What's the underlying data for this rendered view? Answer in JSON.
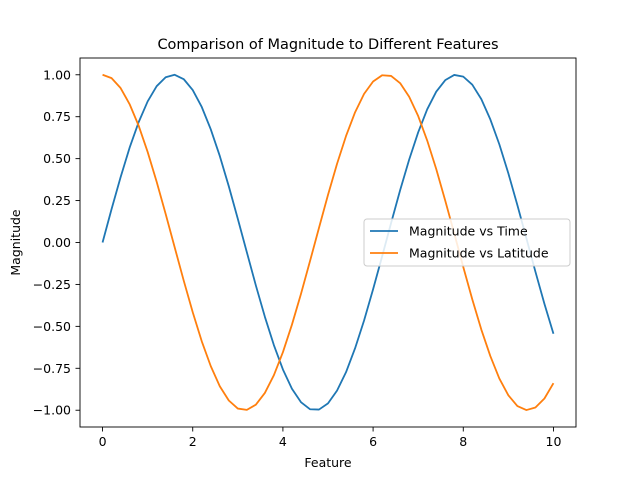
{
  "chart_data": {
    "type": "line",
    "title": "Comparison of Magnitude to Different Features",
    "xlabel": "Feature",
    "ylabel": "Magnitude",
    "xlim": [
      -0.5,
      10.5
    ],
    "ylim": [
      -1.1,
      1.1
    ],
    "xticks": [
      0,
      2,
      4,
      6,
      8,
      10
    ],
    "xtick_labels": [
      "0",
      "2",
      "4",
      "6",
      "8",
      "10"
    ],
    "yticks": [
      -1.0,
      -0.75,
      -0.5,
      -0.25,
      0.0,
      0.25,
      0.5,
      0.75,
      1.0
    ],
    "ytick_labels": [
      "−1.00",
      "−0.75",
      "−0.50",
      "−0.25",
      "0.00",
      "0.25",
      "0.50",
      "0.75",
      "1.00"
    ],
    "grid": false,
    "legend_position": "center-right",
    "x": [
      0.0,
      0.2,
      0.4,
      0.6,
      0.8,
      1.0,
      1.2,
      1.4,
      1.6,
      1.8,
      2.0,
      2.2,
      2.4,
      2.6,
      2.8,
      3.0,
      3.2,
      3.4,
      3.6,
      3.8,
      4.0,
      4.2,
      4.4,
      4.6,
      4.8,
      5.0,
      5.2,
      5.4,
      5.6,
      5.8,
      6.0,
      6.2,
      6.4,
      6.6,
      6.8,
      7.0,
      7.2,
      7.4,
      7.6,
      7.8,
      8.0,
      8.2,
      8.4,
      8.6,
      8.8,
      9.0,
      9.2,
      9.4,
      9.6,
      9.8,
      10.0
    ],
    "series": [
      {
        "name": "Magnitude vs Time",
        "color": "#1f77b4",
        "values": [
          0.0,
          0.199,
          0.389,
          0.565,
          0.717,
          0.841,
          0.932,
          0.985,
          1.0,
          0.974,
          0.909,
          0.808,
          0.675,
          0.516,
          0.335,
          0.141,
          -0.058,
          -0.256,
          -0.443,
          -0.612,
          -0.757,
          -0.872,
          -0.952,
          -0.994,
          -0.996,
          -0.959,
          -0.883,
          -0.773,
          -0.631,
          -0.465,
          -0.279,
          -0.083,
          0.117,
          0.312,
          0.494,
          0.657,
          0.794,
          0.899,
          0.968,
          0.999,
          0.989,
          0.941,
          0.855,
          0.734,
          0.585,
          0.412,
          0.223,
          0.025,
          -0.174,
          -0.366,
          -0.544
        ]
      },
      {
        "name": "Magnitude vs Latitude",
        "color": "#ff7f0e",
        "values": [
          1.0,
          0.98,
          0.921,
          0.825,
          0.697,
          0.54,
          0.362,
          0.17,
          -0.029,
          -0.227,
          -0.416,
          -0.589,
          -0.737,
          -0.857,
          -0.942,
          -0.99,
          -0.998,
          -0.967,
          -0.897,
          -0.791,
          -0.654,
          -0.49,
          -0.307,
          -0.112,
          0.087,
          0.284,
          0.469,
          0.635,
          0.776,
          0.886,
          0.96,
          0.997,
          0.993,
          0.95,
          0.869,
          0.754,
          0.608,
          0.438,
          0.25,
          0.054,
          -0.146,
          -0.339,
          -0.519,
          -0.677,
          -0.811,
          -0.911,
          -0.975,
          -0.999,
          -0.984,
          -0.93,
          -0.839
        ]
      }
    ]
  }
}
